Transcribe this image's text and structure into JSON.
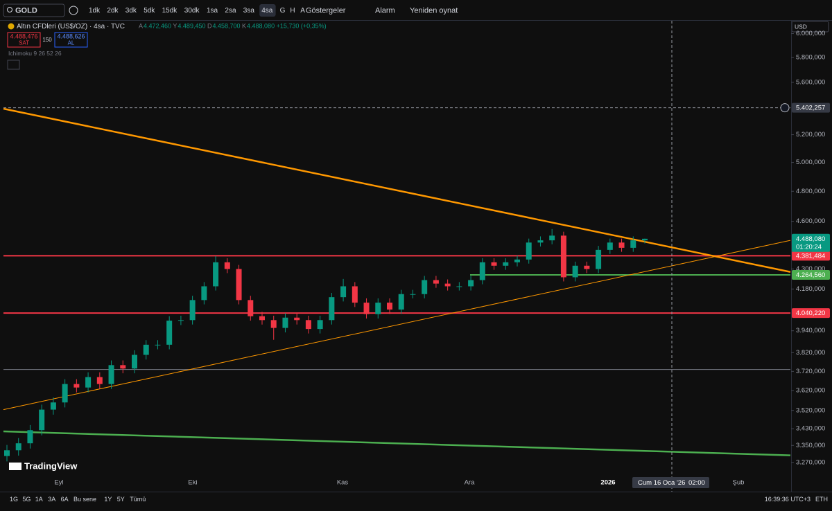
{
  "toolbar": {
    "symbol": "GOLD",
    "intervals": [
      "1dk",
      "2dk",
      "3dk",
      "5dk",
      "15dk",
      "30dk",
      "1sa",
      "2sa",
      "3sa",
      "4sa",
      "G",
      "H",
      "A"
    ],
    "active_interval": 9,
    "indicators": "Göstergeler",
    "alarm": "Alarm",
    "replay": "Yeniden oynat"
  },
  "legend": {
    "title": "Altın CFDleri (US$/OZ) · 4sa · TVC",
    "ohlc": [
      {
        "key": "A",
        "value": "4.472,460"
      },
      {
        "key": "Y",
        "value": "4.489,450"
      },
      {
        "key": "D",
        "value": "4.458,700"
      },
      {
        "key": "K",
        "value": "4.488,080"
      }
    ],
    "change": "+15,730 (+0,35%)",
    "sell_price": "4.488,476",
    "sell": "SAT",
    "spread": "150",
    "buy_price": "4.488,626",
    "buy": "AL",
    "indicator": "Ichimoku 9 26 52 26"
  },
  "currency": "USD",
  "logo": "TradingView",
  "chart": {
    "type": "candlestick",
    "log_scale": true,
    "ylim": [
      3200,
      6110
    ],
    "yticks": [
      {
        "value": 6000,
        "label": "6.000,000"
      },
      {
        "value": 5800,
        "label": "5.800,000"
      },
      {
        "value": 5600,
        "label": "5.600,000"
      },
      {
        "value": 5200,
        "label": "5.200,000"
      },
      {
        "value": 5000,
        "label": "5.000,000"
      },
      {
        "value": 4800,
        "label": "4.800,000"
      },
      {
        "value": 4600,
        "label": "4.600,000"
      },
      {
        "value": 4300,
        "label": "4.300,000"
      },
      {
        "value": 4180,
        "label": "4.180,000"
      },
      {
        "value": 3940,
        "label": "3.940,000"
      },
      {
        "value": 3820,
        "label": "3.820,000"
      },
      {
        "value": 3720,
        "label": "3.720,000"
      },
      {
        "value": 3620,
        "label": "3.620,000"
      },
      {
        "value": 3520,
        "label": "3.520,000"
      },
      {
        "value": 3430,
        "label": "3.430,000"
      },
      {
        "value": 3350,
        "label": "3.350,000"
      },
      {
        "value": 3270,
        "label": "3.270,000"
      }
    ],
    "x_labels": [
      "Eyl",
      "Eki",
      "Kas",
      "Ara",
      "2026",
      "Şub"
    ],
    "up_color": "#089981",
    "down_color": "#f23645",
    "open": [
      3300,
      3327,
      3360,
      3423,
      3524,
      3560,
      3654,
      3636,
      3690,
      3654,
      3753,
      3735,
      3808,
      3863,
      3863,
      3997,
      4000,
      4115,
      4196,
      4341,
      4300,
      4115,
      4022,
      4000,
      3956,
      4014,
      4000,
      3950,
      4000,
      4132,
      4196,
      4100,
      4034,
      4100,
      4060,
      4150,
      4150,
      4233,
      4212,
      4196,
      4196,
      4233,
      4341,
      4320,
      4341,
      4358,
      4464,
      4478,
      4508,
      4250,
      4320,
      4300,
      4418,
      4464,
      4431,
      4478
    ],
    "high": [
      3352,
      3385,
      3448,
      3549,
      3585,
      3679,
      3679,
      3715,
      3715,
      3778,
      3778,
      3833,
      3888,
      3888,
      4022,
      4025,
      4140,
      4221,
      4380,
      4366,
      4325,
      4140,
      4047,
      4025,
      4039,
      4039,
      4025,
      4025,
      4157,
      4240,
      4221,
      4125,
      4125,
      4125,
      4175,
      4175,
      4258,
      4258,
      4237,
      4221,
      4258,
      4366,
      4366,
      4366,
      4383,
      4489,
      4503,
      4550,
      4533,
      4345,
      4345,
      4443,
      4489,
      4489,
      4503,
      4489
    ],
    "low": [
      3275,
      3302,
      3335,
      3398,
      3499,
      3535,
      3611,
      3611,
      3629,
      3629,
      3710,
      3710,
      3783,
      3838,
      3838,
      3972,
      3975,
      4090,
      4171,
      4275,
      4090,
      3997,
      3975,
      3890,
      3931,
      3975,
      3925,
      3925,
      3975,
      4107,
      4075,
      4009,
      4009,
      4035,
      4035,
      4125,
      4125,
      4187,
      4171,
      4171,
      4171,
      4208,
      4295,
      4295,
      4316,
      4333,
      4439,
      4453,
      4225,
      4225,
      4275,
      4275,
      4393,
      4406,
      4406,
      4459
    ],
    "close": [
      3327,
      3360,
      3423,
      3524,
      3560,
      3654,
      3636,
      3690,
      3654,
      3753,
      3735,
      3808,
      3863,
      3863,
      3997,
      4000,
      4115,
      4196,
      4341,
      4300,
      4115,
      4022,
      4000,
      3956,
      4014,
      4000,
      3950,
      4000,
      4132,
      4196,
      4100,
      4034,
      4100,
      4060,
      4150,
      4150,
      4233,
      4212,
      4196,
      4196,
      4233,
      4341,
      4320,
      4341,
      4358,
      4464,
      4478,
      4508,
      4250,
      4320,
      4300,
      4418,
      4464,
      4431,
      4478,
      4488
    ],
    "trendlines": [
      {
        "start": 5395,
        "end": 4282,
        "color": "#ff9800",
        "width": 2.5
      },
      {
        "start": 3524,
        "end": 4478,
        "color": "#ff9800",
        "width": 1
      },
      {
        "start": 3417,
        "end": 3303,
        "color": "#4caf50",
        "width": 2.5
      }
    ],
    "hlines": [
      {
        "price": 4381.484,
        "label": "4.381,484",
        "color": "#f23645"
      },
      {
        "price": 4264.56,
        "label": "4.264,560",
        "color": "#4caf50"
      },
      {
        "price": 4040.22,
        "label": "4.040,220",
        "color": "#f23645"
      },
      {
        "price": 3730,
        "color": "#787b86"
      }
    ],
    "last_price": {
      "value": 4488.08,
      "label": "4.488,080",
      "countdown": "01:20:24",
      "color": "#089981"
    },
    "crosshair": {
      "price": 5402.257,
      "label": "5.402,257",
      "date": "Cum 16 Oca '26",
      "time": "02:00"
    }
  },
  "bottom": {
    "ranges": [
      "1G",
      "5G",
      "1A",
      "3A",
      "6A",
      "Bu sene",
      "1Y",
      "5Y",
      "Tümü"
    ],
    "clock": "16:39:36 UTC+3",
    "session": "ETH"
  }
}
